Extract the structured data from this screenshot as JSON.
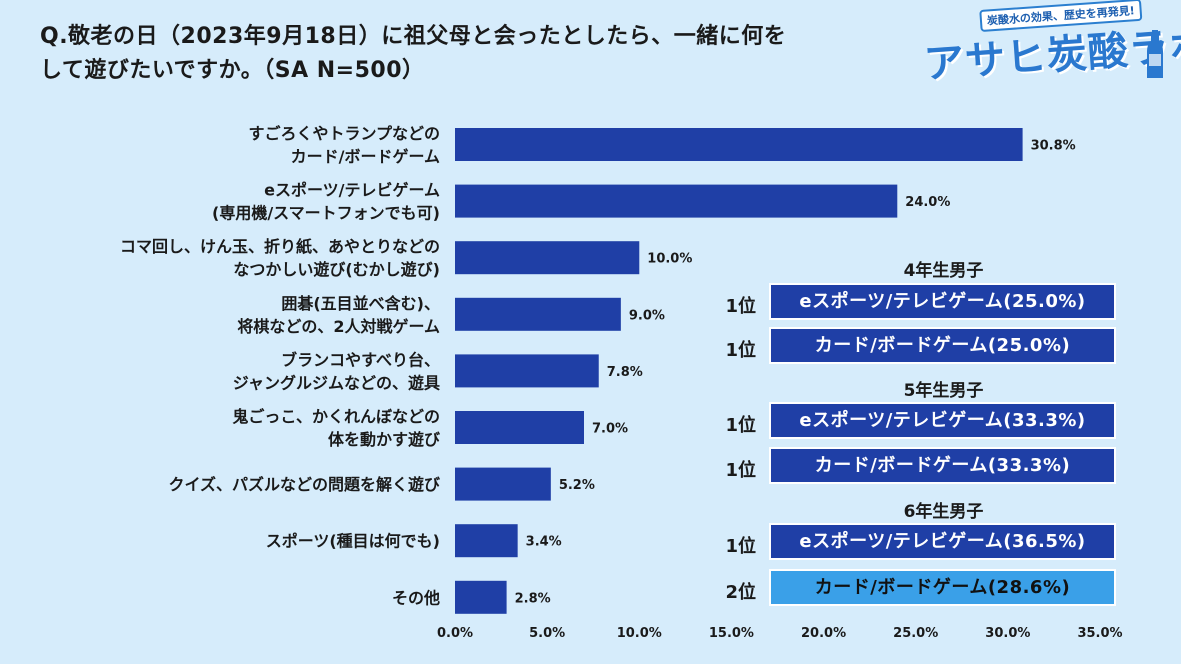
{
  "question": {
    "line1": "Q.敬老の日（2023年9月18日）に祖父母と会ったとしたら、一緒に何を",
    "line2": "して遊びたいですか。（SA N=500）"
  },
  "logo": {
    "tagline": "炭酸水の効果、歴史を再発見!",
    "name": "アサヒ炭酸ラボ"
  },
  "colors": {
    "bar": "#1f3fa6",
    "box_primary": "#1f3fa6",
    "box_secondary": "#3aa0e8",
    "background": "#d6ecfb"
  },
  "chart_data": {
    "type": "bar",
    "orientation": "horizontal",
    "title": "Q.敬老の日（2023年9月18日）に祖父母と会ったとしたら、一緒に何をして遊びたいですか。（SA N=500）",
    "categories": [
      [
        "すごろくやトランプなどの",
        "カード/ボードゲーム"
      ],
      [
        "eスポーツ/テレビゲーム",
        "(専用機/スマートフォンでも可)"
      ],
      [
        "コマ回し、けん玉、折り紙、あやとりなどの",
        "なつかしい遊び(むかし遊び)"
      ],
      [
        "囲碁(五目並べ含む)、",
        "将棋などの、2人対戦ゲーム"
      ],
      [
        "ブランコやすべり台、",
        "ジャングルジムなどの、遊具"
      ],
      [
        "鬼ごっこ、かくれんぼなどの",
        "体を動かす遊び"
      ],
      [
        "クイズ、パズルなどの問題を解く遊び"
      ],
      [
        "スポーツ(種目は何でも)"
      ],
      [
        "その他"
      ]
    ],
    "values": [
      30.8,
      24.0,
      10.0,
      9.0,
      7.8,
      7.0,
      5.2,
      3.4,
      2.8
    ],
    "value_labels": [
      "30.8%",
      "24.0%",
      "10.0%",
      "9.0%",
      "7.8%",
      "7.0%",
      "5.2%",
      "3.4%",
      "2.8%"
    ],
    "xlim": [
      0,
      35
    ],
    "xticks": [
      0,
      5,
      10,
      15,
      20,
      25,
      30,
      35
    ],
    "xtick_labels": [
      "0.0%",
      "5.0%",
      "10.0%",
      "15.0%",
      "20.0%",
      "25.0%",
      "30.0%",
      "35.0%"
    ],
    "grid": false,
    "xlabel": "",
    "ylabel": ""
  },
  "rankings": [
    {
      "title": "4年生男子",
      "items": [
        {
          "rank": "1位",
          "label": "eスポーツ/テレビゲーム(25.0%)"
        },
        {
          "rank": "1位",
          "label": "カード/ボードゲーム(25.0%)"
        }
      ]
    },
    {
      "title": "5年生男子",
      "items": [
        {
          "rank": "1位",
          "label": "eスポーツ/テレビゲーム(33.3%)"
        },
        {
          "rank": "1位",
          "label": "カード/ボードゲーム(33.3%)"
        }
      ]
    },
    {
      "title": "6年生男子",
      "items": [
        {
          "rank": "1位",
          "label": "eスポーツ/テレビゲーム(36.5%)"
        },
        {
          "rank": "2位",
          "label": "カード/ボードゲーム(28.6%)"
        }
      ]
    }
  ]
}
